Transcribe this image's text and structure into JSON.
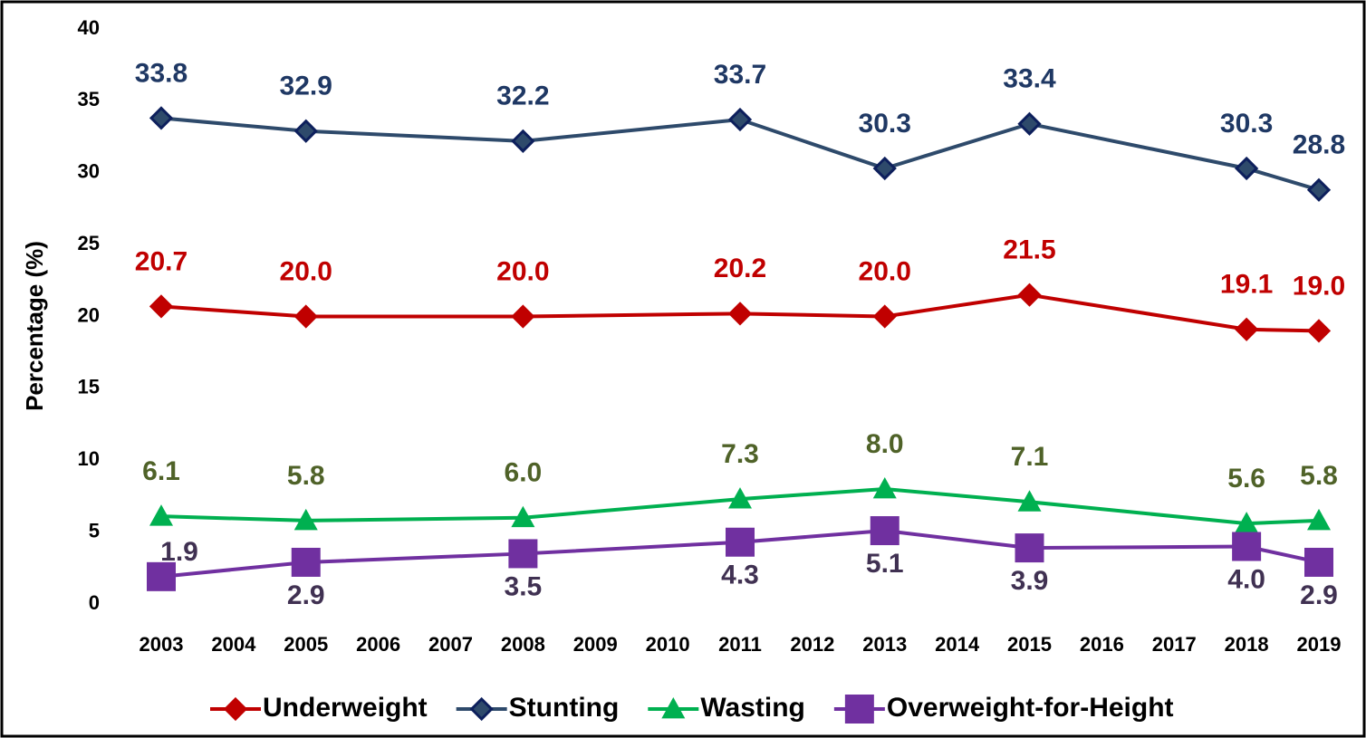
{
  "chart_data": {
    "type": "line",
    "ylabel": "Percentage (%)",
    "xlim": [
      2003,
      2019
    ],
    "xticks": [
      2003,
      2004,
      2005,
      2006,
      2007,
      2008,
      2009,
      2010,
      2011,
      2012,
      2013,
      2014,
      2015,
      2016,
      2017,
      2018,
      2019
    ],
    "ylim": [
      0,
      40
    ],
    "yticks": [
      0,
      5,
      10,
      15,
      20,
      25,
      30,
      35,
      40
    ],
    "grid": false,
    "legend": "bottom",
    "x": [
      2003,
      2005,
      2008,
      2011,
      2013,
      2015,
      2018,
      2019
    ],
    "series": [
      {
        "name": "Underweight",
        "color": "#c00000",
        "marker": "diamond",
        "label_color": "#c00000",
        "values": [
          20.7,
          20,
          20,
          20.2,
          20,
          21.5,
          19.1,
          19
        ],
        "value_labels": [
          "20.7",
          "20.0",
          "20.0",
          "20.2",
          "20.0",
          "21.5",
          "19.1",
          "19.0"
        ]
      },
      {
        "name": "Stunting",
        "color": "#2e4a6b",
        "marker": "diamond",
        "label_color": "#1f3864",
        "values": [
          33.8,
          32.9,
          32.2,
          33.7,
          30.3,
          33.4,
          30.3,
          28.8
        ],
        "value_labels": [
          "33.8",
          "32.9",
          "32.2",
          "33.7",
          "30.3",
          "33.4",
          "30.3",
          "28.8"
        ]
      },
      {
        "name": "Wasting",
        "color": "#00b050",
        "marker": "triangle",
        "label_color": "#4f6228",
        "values": [
          6.1,
          5.8,
          6,
          7.3,
          8,
          7.1,
          5.6,
          5.8
        ],
        "value_labels": [
          "6.1",
          "5.8",
          "6.0",
          "7.3",
          "8.0",
          "7.1",
          "5.6",
          "5.8"
        ]
      },
      {
        "name": "Overweight-for-Height",
        "color": "#7030a0",
        "marker": "square",
        "label_color": "#403152",
        "values": [
          1.9,
          2.9,
          3.5,
          4.3,
          5.1,
          3.9,
          4,
          2.9
        ],
        "value_labels": [
          "1.9",
          "2.9",
          "3.5",
          "4.3",
          "5.1",
          "3.9",
          "4.0",
          "2.9"
        ]
      }
    ]
  }
}
